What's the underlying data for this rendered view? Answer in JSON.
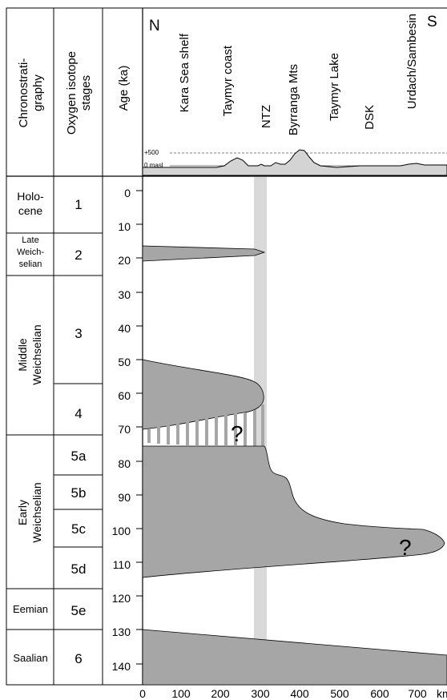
{
  "header": {
    "chronostratigraphy": [
      "Chronostrati-",
      "graphy"
    ],
    "oxygen_isotope_stages": [
      "Oxygen isotope",
      "stages"
    ],
    "age": "Age (ka)",
    "north": "N",
    "south": "S",
    "locations": [
      "Kara Sea shelf",
      "Taymyr coast",
      "NTZ",
      "Byrranga Mts",
      "Taymyr Lake",
      "DSK",
      "Urdach/Sambesin"
    ],
    "profile_labels": [
      "+500",
      "0 masl"
    ]
  },
  "chrono_units": [
    {
      "lines": [
        "Holo-",
        "cene"
      ],
      "from": 0,
      "to": 13
    },
    {
      "lines": [
        "Late",
        "Weich-",
        "selian"
      ],
      "from": 13,
      "to": 25
    },
    {
      "lines": [
        "Middle",
        "Weichselian"
      ],
      "from": 25,
      "to": 74,
      "rotated": true
    },
    {
      "lines": [
        "Early",
        "Weichselian"
      ],
      "from": 74,
      "to": 116,
      "rotated": true
    },
    {
      "lines": [
        "Eemian"
      ],
      "from": 116,
      "to": 128
    },
    {
      "lines": [
        "Saalian"
      ],
      "from": 128,
      "to": 144
    }
  ],
  "isotope_stages": [
    {
      "label": "1",
      "from": 0,
      "to": 13
    },
    {
      "label": "2",
      "from": 13,
      "to": 25
    },
    {
      "label": "3",
      "from": 25,
      "to": 57
    },
    {
      "label": "4",
      "from": 57,
      "to": 74
    },
    {
      "label": "5a",
      "from": 74,
      "to": 84
    },
    {
      "label": "5b",
      "from": 84,
      "to": 94
    },
    {
      "label": "5c",
      "from": 94,
      "to": 105
    },
    {
      "label": "5d",
      "from": 105,
      "to": 116
    },
    {
      "label": "5e",
      "from": 116,
      "to": 128
    },
    {
      "label": "6",
      "from": 128,
      "to": 144
    }
  ],
  "age_ticks": [
    "0",
    "10",
    "20",
    "30",
    "40",
    "50",
    "60",
    "70",
    "80",
    "90",
    "100",
    "110",
    "120",
    "130",
    "140"
  ],
  "distance_ticks": [
    "0",
    "100",
    "200",
    "300",
    "400",
    "500",
    "600",
    "700"
  ],
  "distance_unit": "km",
  "question_marks": [
    "?",
    "?"
  ],
  "colors": {
    "ice": "#a6a6a6",
    "ntz_band": "#d9d9d9",
    "profile": "#d4d4d4"
  }
}
